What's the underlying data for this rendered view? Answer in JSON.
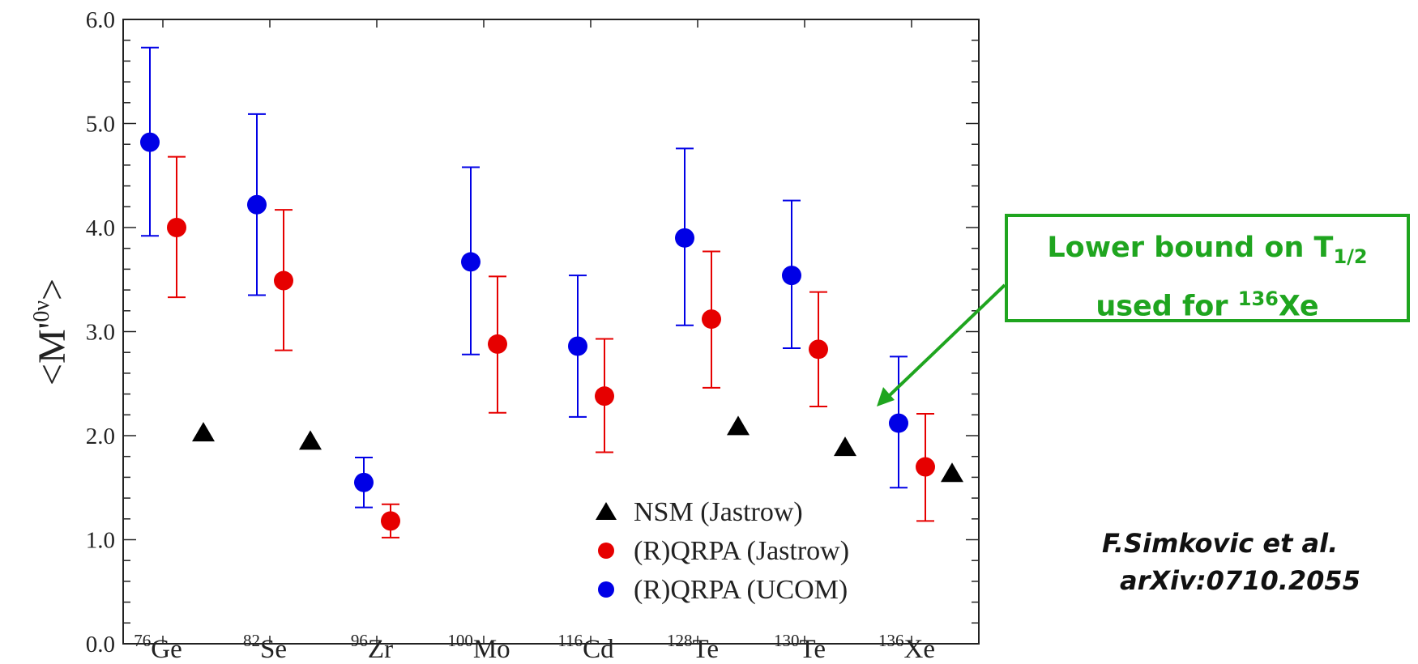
{
  "chart_data": {
    "type": "scatter",
    "ylabel_main": "<M'",
    "ylabel_sup": "0ν",
    "ylabel_end": ">",
    "ylim": [
      0.0,
      6.0
    ],
    "yticks": [
      "0.0",
      "1.0",
      "2.0",
      "3.0",
      "4.0",
      "5.0",
      "6.0"
    ],
    "categories": [
      {
        "mass": "76",
        "el": "Ge"
      },
      {
        "mass": "82",
        "el": "Se"
      },
      {
        "mass": "96",
        "el": "Zr"
      },
      {
        "mass": "100",
        "el": "Mo"
      },
      {
        "mass": "116",
        "el": "Cd"
      },
      {
        "mass": "128",
        "el": "Te"
      },
      {
        "mass": "130",
        "el": "Te"
      },
      {
        "mass": "136",
        "el": "Xe"
      }
    ],
    "legend_position": "bottom-right",
    "series": [
      {
        "name": "NSM (Jastrow)",
        "marker": "triangle",
        "color": "#000000",
        "values": [
          2.03,
          1.95,
          null,
          null,
          null,
          2.09,
          1.89,
          1.64
        ]
      },
      {
        "name": "(R)QRPA (Jastrow)",
        "marker": "circle",
        "color": "#e60000",
        "values": [
          4.0,
          3.49,
          1.18,
          2.88,
          2.38,
          3.12,
          2.83,
          1.7
        ],
        "err_low": [
          3.33,
          2.82,
          1.02,
          2.22,
          1.84,
          2.46,
          2.28,
          1.18
        ],
        "err_high": [
          4.68,
          4.17,
          1.34,
          3.53,
          2.93,
          3.77,
          3.38,
          2.21
        ]
      },
      {
        "name": "(R)QRPA (UCOM)",
        "marker": "circle",
        "color": "#0000e6",
        "values": [
          4.82,
          4.22,
          1.55,
          3.67,
          2.86,
          3.9,
          3.54,
          2.12
        ],
        "err_low": [
          3.92,
          3.35,
          1.31,
          2.78,
          2.18,
          3.06,
          2.84,
          1.5
        ],
        "err_high": [
          5.73,
          5.09,
          1.79,
          4.58,
          3.54,
          4.76,
          4.26,
          2.76
        ]
      }
    ]
  },
  "annotation": {
    "text_line1": "Lower bound on T",
    "text_line1_sub": "1/2",
    "text_line2_pre": "used for ",
    "text_line2_sup": "136",
    "text_line2_el": "Xe",
    "color": "#1fa51f"
  },
  "citation": {
    "line1": "F.Simkovic et al.",
    "line2": "arXiv:0710.2055"
  }
}
